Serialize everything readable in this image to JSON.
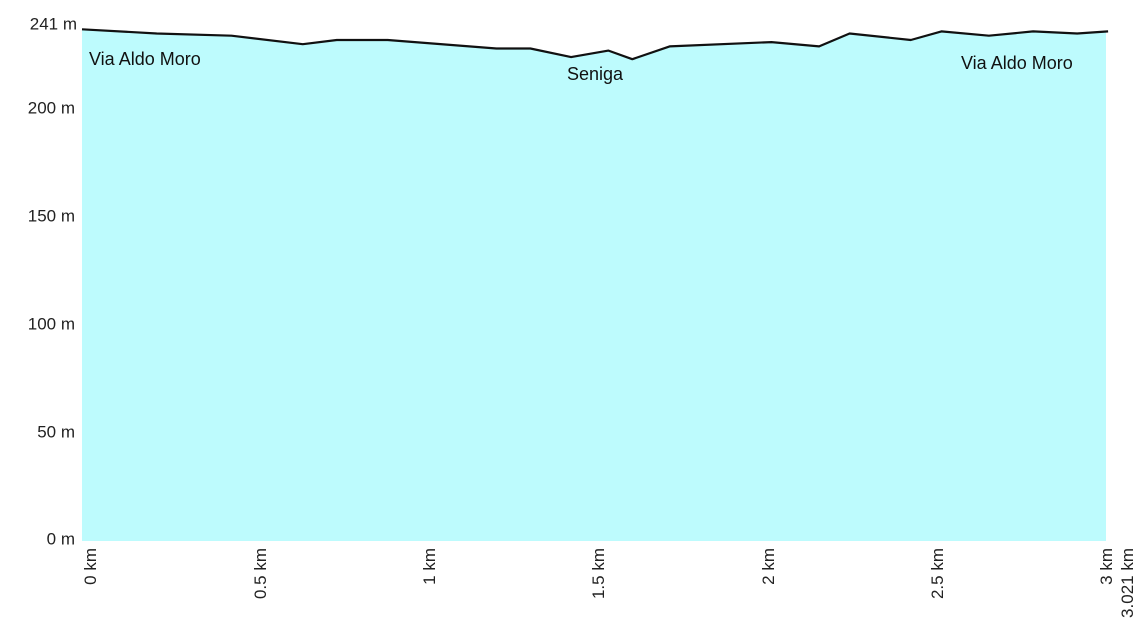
{
  "chart_data": {
    "type": "area",
    "title": "",
    "xlabel": "",
    "ylabel": "",
    "x_unit": "km",
    "y_unit": "m",
    "xlim": [
      0,
      3.021
    ],
    "ylim": [
      0,
      241
    ],
    "x_tick_labels": [
      "0 km",
      "0.5 km",
      "1 km",
      "1.5 km",
      "2 km",
      "2.5 km",
      "3 km",
      "3.021 km"
    ],
    "y_tick_labels": [
      "241 m",
      "200 m",
      "150 m",
      "100 m",
      "50 m",
      "0 m"
    ],
    "grid": false,
    "fill_color": "#bdfbfd",
    "line_color": "#111111",
    "series": [
      {
        "x": [
          0,
          0.22,
          0.44,
          0.65,
          0.75,
          0.9,
          1.22,
          1.32,
          1.44,
          1.55,
          1.62,
          1.73,
          2.03,
          2.17,
          2.26,
          2.44,
          2.53,
          2.67,
          2.8,
          2.93,
          3.021
        ],
        "y": [
          239,
          237,
          236,
          232,
          234,
          234,
          230,
          230,
          226,
          229,
          225,
          231,
          233,
          231,
          237,
          234,
          238,
          236,
          238,
          237,
          238
        ]
      }
    ],
    "annotations": [
      {
        "text": "Via Aldo Moro",
        "x": 0.02,
        "y": 226
      },
      {
        "text": "Seniga",
        "x": 1.44,
        "y": 215
      },
      {
        "text": "Via Aldo Moro",
        "x": 2.59,
        "y": 222
      }
    ]
  }
}
